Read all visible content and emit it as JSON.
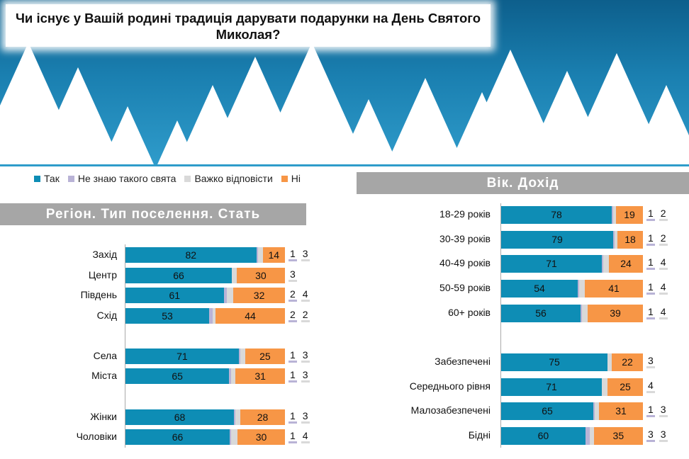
{
  "title": "Чи існує у Вашій родині традиція дарувати подарунки  на День Святого Миколая?",
  "colors": {
    "tak": "#0e8db5",
    "ne_znayu": "#b9b3d6",
    "vazhko": "#d9d9d9",
    "ni": "#f79646"
  },
  "chart_data": {
    "type": "bar",
    "stacked": true,
    "orientation": "horizontal",
    "legend": [
      "Так",
      "Не знаю такого свята",
      "Важко відповісти",
      "Ні"
    ],
    "legend_position": "top-left",
    "groups": [
      {
        "title": "Регіон. Тип поселення. Стать",
        "rows": [
          {
            "label": "Захід",
            "values": [
              82,
              1,
              3,
              14
            ]
          },
          {
            "label": "Центр",
            "values": [
              66,
              null,
              3,
              30
            ]
          },
          {
            "label": "Південь",
            "values": [
              61,
              2,
              4,
              32
            ]
          },
          {
            "label": "Схід",
            "values": [
              53,
              2,
              2,
              44
            ]
          },
          {
            "label": "Села",
            "values": [
              71,
              1,
              3,
              25
            ]
          },
          {
            "label": "Міста",
            "values": [
              65,
              1,
              3,
              31
            ]
          },
          {
            "label": "Жінки",
            "values": [
              68,
              1,
              3,
              28
            ]
          },
          {
            "label": "Чоловіки",
            "values": [
              66,
              1,
              4,
              30
            ]
          }
        ]
      },
      {
        "title": "Вік. Дохід",
        "rows": [
          {
            "label": "18-29 років",
            "values": [
              78,
              1,
              2,
              19
            ]
          },
          {
            "label": "30-39 років",
            "values": [
              79,
              1,
              2,
              18
            ]
          },
          {
            "label": "40-49 років",
            "values": [
              71,
              1,
              4,
              24
            ]
          },
          {
            "label": "50-59 років",
            "values": [
              54,
              1,
              4,
              41
            ]
          },
          {
            "label": "60+ років",
            "values": [
              56,
              1,
              4,
              39
            ]
          },
          {
            "label": "Забезпечені",
            "values": [
              75,
              null,
              3,
              22
            ]
          },
          {
            "label": "Середнього рівня",
            "values": [
              71,
              null,
              4,
              25
            ]
          },
          {
            "label": "Малозабезпечені",
            "values": [
              65,
              1,
              3,
              31
            ]
          },
          {
            "label": "Бідні",
            "values": [
              60,
              3,
              3,
              35
            ]
          }
        ]
      }
    ]
  }
}
